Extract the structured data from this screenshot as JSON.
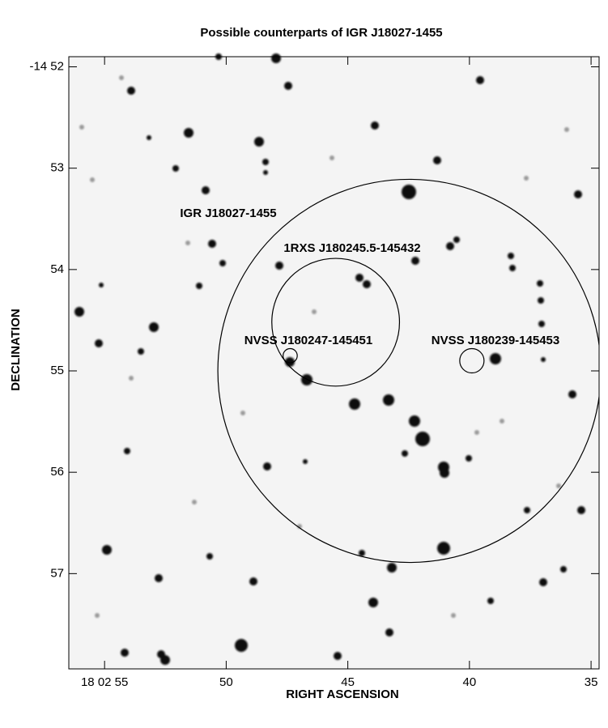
{
  "chart_data": {
    "type": "sky-map",
    "title": "Possible counterparts of IGR J18027-1455",
    "x_label": "RIGHT ASCENSION",
    "y_label": "DECLINATION",
    "xlim": [
      56.47,
      34.67
    ],
    "ylim": [
      51.9,
      57.94
    ],
    "xticks": [
      {
        "value": 55,
        "label": "18 02 55"
      },
      50,
      45,
      40,
      35
    ],
    "yticks": [
      {
        "value": 52,
        "label": "-14 52"
      },
      53,
      54,
      55,
      56,
      57
    ],
    "annotations": [
      {
        "label": "IGR J18027-1455",
        "ra": 42.47,
        "dec": 55.0,
        "radius": 1.89
      },
      {
        "label": "1RXS J180245.5-145432",
        "ra": 45.5,
        "dec": 54.52,
        "radius": 0.63
      },
      {
        "label": "NVSS J180247-145451",
        "ra": 47.37,
        "dec": 54.85,
        "radius": 0.07
      },
      {
        "label": "NVSS J180239-145453",
        "ra": 39.9,
        "dec": 54.9,
        "radius": 0.12
      }
    ]
  }
}
